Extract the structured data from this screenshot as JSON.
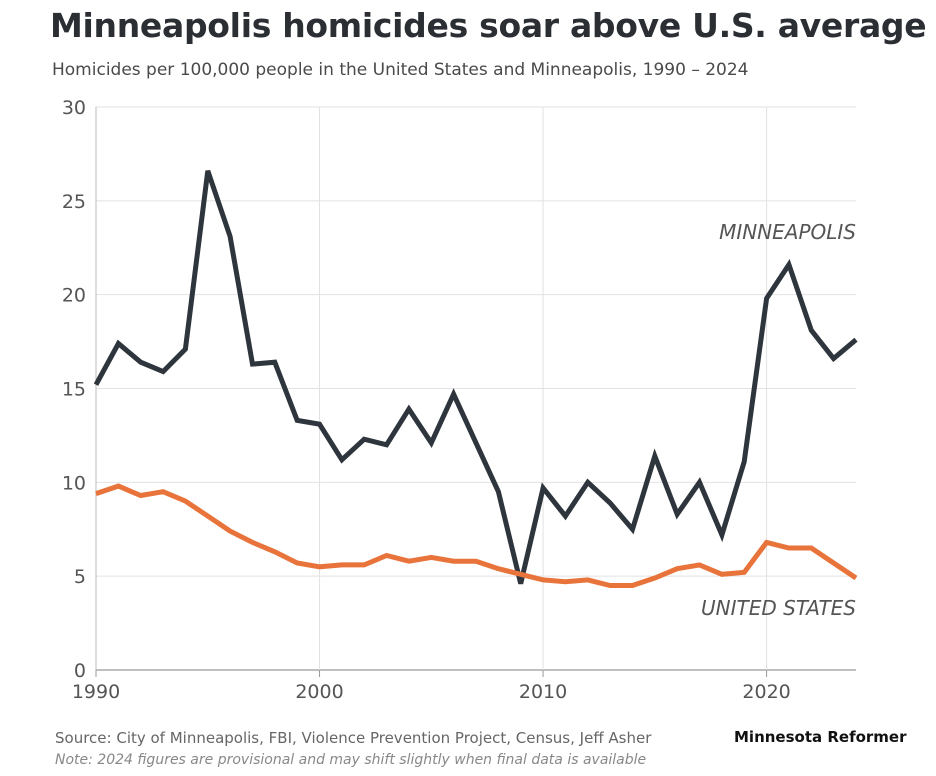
{
  "header": {
    "title": "Minneapolis homicides soar above U.S. average",
    "subtitle": "Homicides per 100,000 people in the United States and Minneapolis, 1990 – 2024"
  },
  "footer": {
    "source": "Source: City of Minneapolis, FBI, Violence Prevention Project, Census, Jeff Asher",
    "note": "Note: 2024 figures are provisional and may shift slightly when final data is available",
    "brand": "Minnesota Reformer"
  },
  "chart_data": {
    "type": "line",
    "title": "Minneapolis homicides soar above U.S. average",
    "subtitle": "Homicides per 100,000 people in the United States and Minneapolis, 1990 – 2024",
    "xlabel": "",
    "ylabel": "",
    "xlim": [
      1990,
      2024
    ],
    "ylim": [
      0,
      30
    ],
    "xticks": [
      1990,
      2000,
      2010,
      2020
    ],
    "yticks": [
      0,
      5,
      10,
      15,
      20,
      25,
      30
    ],
    "grid": true,
    "x": [
      1990,
      1991,
      1992,
      1993,
      1994,
      1995,
      1996,
      1997,
      1998,
      1999,
      2000,
      2001,
      2002,
      2003,
      2004,
      2005,
      2006,
      2007,
      2008,
      2009,
      2010,
      2011,
      2012,
      2013,
      2014,
      2015,
      2016,
      2017,
      2018,
      2019,
      2020,
      2021,
      2022,
      2023,
      2024
    ],
    "series": [
      {
        "name": "MINNEAPOLIS",
        "color": "#2e353d",
        "values": [
          15.2,
          17.4,
          16.4,
          15.9,
          17.1,
          26.6,
          23.1,
          16.3,
          16.4,
          13.3,
          13.1,
          11.2,
          12.3,
          12.0,
          13.9,
          12.1,
          14.7,
          12.1,
          9.5,
          4.6,
          9.7,
          8.2,
          10.0,
          8.9,
          7.5,
          11.4,
          8.3,
          10.0,
          7.2,
          11.1,
          19.8,
          21.6,
          18.1,
          16.6,
          17.6
        ]
      },
      {
        "name": "UNITED STATES",
        "color": "#e8743b",
        "values": [
          9.4,
          9.8,
          9.3,
          9.5,
          9.0,
          8.2,
          7.4,
          6.8,
          6.3,
          5.7,
          5.5,
          5.6,
          5.6,
          6.1,
          5.8,
          6.0,
          5.8,
          5.8,
          5.4,
          5.1,
          4.8,
          4.7,
          4.8,
          4.5,
          4.5,
          4.9,
          5.4,
          5.6,
          5.1,
          5.2,
          6.8,
          6.5,
          6.5,
          5.7,
          4.9
        ]
      }
    ]
  }
}
